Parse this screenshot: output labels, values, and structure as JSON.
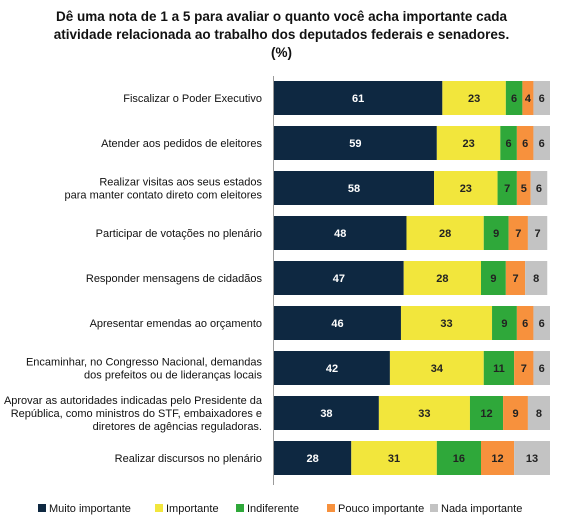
{
  "chart_data": {
    "type": "bar",
    "orientation": "horizontal",
    "stacked": true,
    "title_lines": [
      "Dê uma nota de 1 a 5 para avaliar o quanto você acha importante cada",
      "atividade relacionada ao trabalho dos deputados federais e senadores.",
      "(%)"
    ],
    "categories": [
      [
        "Fiscalizar o Poder Executivo"
      ],
      [
        "Atender aos pedidos de eleitores"
      ],
      [
        "Realizar visitas aos seus estados",
        "para manter contato direto com eleitores"
      ],
      [
        "Participar de votações no plenário"
      ],
      [
        "Responder mensagens de cidadãos"
      ],
      [
        "Apresentar emendas ao orçamento"
      ],
      [
        "Encaminhar, no Congresso Nacional, demandas",
        "dos prefeitos ou de lideranças locais"
      ],
      [
        "Aprovar as autoridades indicadas pelo Presidente da",
        "República, como ministros do STF, embaixadores e",
        "diretores de agências reguladoras."
      ],
      [
        "Realizar discursos no plenário"
      ]
    ],
    "series": [
      {
        "name": "Muito importante",
        "color": "#0e2841",
        "label_color": "#ffffff",
        "values": [
          61,
          59,
          58,
          48,
          47,
          46,
          42,
          38,
          28
        ]
      },
      {
        "name": "Importante",
        "color": "#f2e63c",
        "label_color": "#222222",
        "values": [
          23,
          23,
          23,
          28,
          28,
          33,
          34,
          33,
          31
        ]
      },
      {
        "name": "Indiferente",
        "color": "#2fa83a",
        "label_color": "#222222",
        "values": [
          6,
          6,
          7,
          9,
          9,
          9,
          11,
          12,
          16
        ]
      },
      {
        "name": "Pouco importante",
        "color": "#f7913d",
        "label_color": "#222222",
        "values": [
          4,
          6,
          5,
          7,
          7,
          6,
          7,
          9,
          12
        ]
      },
      {
        "name": "Nada importante",
        "color": "#c3c3c3",
        "label_color": "#222222",
        "values": [
          6,
          6,
          6,
          7,
          8,
          6,
          6,
          8,
          13
        ]
      }
    ],
    "legend_position": "bottom",
    "grid": false
  }
}
